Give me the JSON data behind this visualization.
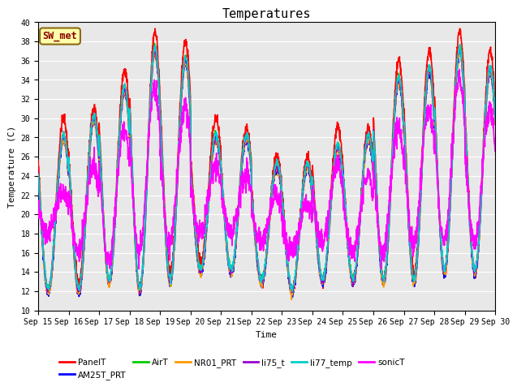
{
  "title": "Temperatures",
  "xlabel": "Time",
  "ylabel": "Temperature (C)",
  "ylim": [
    10,
    40
  ],
  "yticks": [
    10,
    12,
    14,
    16,
    18,
    20,
    22,
    24,
    26,
    28,
    30,
    32,
    34,
    36,
    38,
    40
  ],
  "date_start": 15,
  "date_end": 30,
  "annotation_text": "SW_met",
  "annotation_color": "#8B0000",
  "annotation_bg": "#FFFFAA",
  "annotation_border": "#8B6914",
  "series": [
    {
      "name": "PanelT",
      "color": "#FF0000",
      "lw": 1.2
    },
    {
      "name": "AM25T_PRT",
      "color": "#0000FF",
      "lw": 1.2
    },
    {
      "name": "AirT",
      "color": "#00CC00",
      "lw": 1.2
    },
    {
      "name": "NR01_PRT",
      "color": "#FF9900",
      "lw": 1.2
    },
    {
      "name": "li75_t",
      "color": "#9900CC",
      "lw": 1.2
    },
    {
      "name": "li77_temp",
      "color": "#00CCCC",
      "lw": 1.2
    },
    {
      "name": "sonicT",
      "color": "#FF00FF",
      "lw": 1.2
    }
  ],
  "bg_color": "#E8E8E8",
  "grid_color": "#FFFFFF",
  "title_fontsize": 11,
  "label_fontsize": 8,
  "tick_fontsize": 7,
  "legend_fontsize": 7.5
}
